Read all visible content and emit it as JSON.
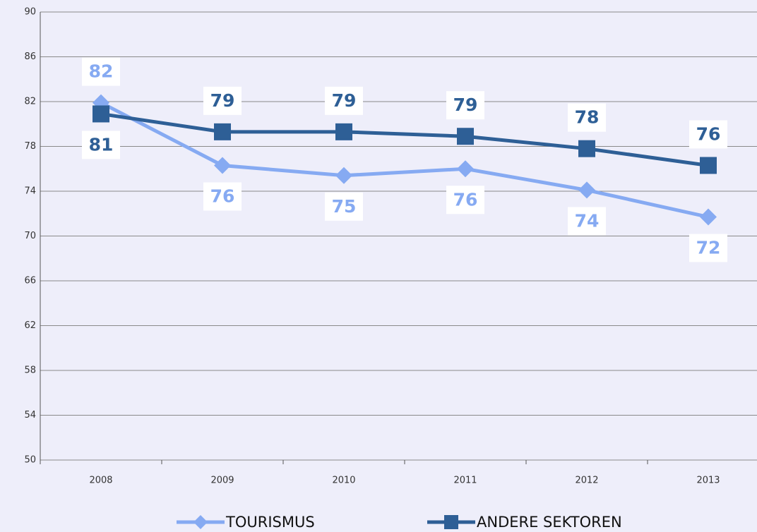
{
  "chart_data": {
    "type": "line",
    "categories": [
      "2008",
      "2009",
      "2010",
      "2011",
      "2012",
      "2013"
    ],
    "series": [
      {
        "name": "TOURISMUS",
        "color": "#86aaf2",
        "marker": "diamond",
        "values": [
          81.9,
          76.3,
          75.4,
          76.0,
          74.1,
          71.7
        ],
        "value_labels": [
          "82",
          "76",
          "75",
          "76",
          "74",
          "72"
        ]
      },
      {
        "name": "ANDERE SEKTOREN",
        "color": "#2e5f96",
        "marker": "square",
        "values": [
          80.9,
          79.3,
          79.3,
          78.9,
          77.8,
          76.3
        ],
        "value_labels": [
          "81",
          "79",
          "79",
          "79",
          "78",
          "76"
        ]
      }
    ],
    "ylim": [
      50,
      90
    ],
    "yticks": [
      50,
      54,
      58,
      62,
      66,
      70,
      74,
      78,
      82,
      86,
      90
    ],
    "grid": true
  }
}
